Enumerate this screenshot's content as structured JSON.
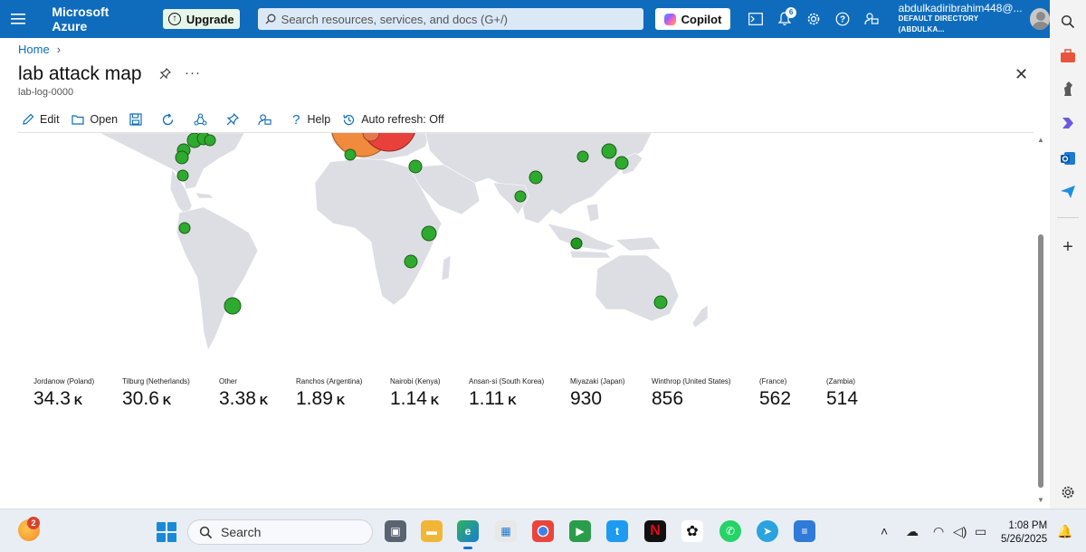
{
  "topbar": {
    "brand": "Microsoft Azure",
    "upgrade_label": "Upgrade",
    "search_placeholder": "Search resources, services, and docs (G+/)",
    "copilot_label": "Copilot",
    "notifications_count": "6",
    "account_user": "abdulkadiribrahim448@...",
    "account_directory": "DEFAULT DIRECTORY (ABDULKA..."
  },
  "breadcrumb": {
    "home": "Home"
  },
  "page": {
    "title": "lab attack map",
    "subtitle": "lab-log-0000"
  },
  "commands": {
    "edit": "Edit",
    "open": "Open",
    "help": "Help",
    "auto_refresh": "Auto refresh: Off"
  },
  "map": {
    "marker_colors": {
      "low": "#2eaa2e",
      "medium": "#f08a3c",
      "high": "#e8413c"
    }
  },
  "kpis": [
    {
      "label": "Jordanow (Poland)",
      "value": "34.3",
      "unit": "K"
    },
    {
      "label": "Tilburg (Netherlands)",
      "value": "30.6",
      "unit": "K"
    },
    {
      "label": "Other",
      "value": "3.38",
      "unit": "K"
    },
    {
      "label": "Ranchos (Argentina)",
      "value": "1.89",
      "unit": "K"
    },
    {
      "label": "Nairobi (Kenya)",
      "value": "1.14",
      "unit": "K"
    },
    {
      "label": "Ansan-si (South Korea)",
      "value": "1.11",
      "unit": "K"
    },
    {
      "label": "Miyazaki (Japan)",
      "value": "930",
      "unit": ""
    },
    {
      "label": "Winthrop (United States)",
      "value": "856",
      "unit": ""
    },
    {
      "label": "(France)",
      "value": "562",
      "unit": ""
    },
    {
      "label": "(Zambia)",
      "value": "514",
      "unit": ""
    }
  ],
  "taskbar": {
    "weather_badge": "2",
    "search_label": "Search",
    "time": "1:08 PM",
    "date": "5/26/2025"
  }
}
